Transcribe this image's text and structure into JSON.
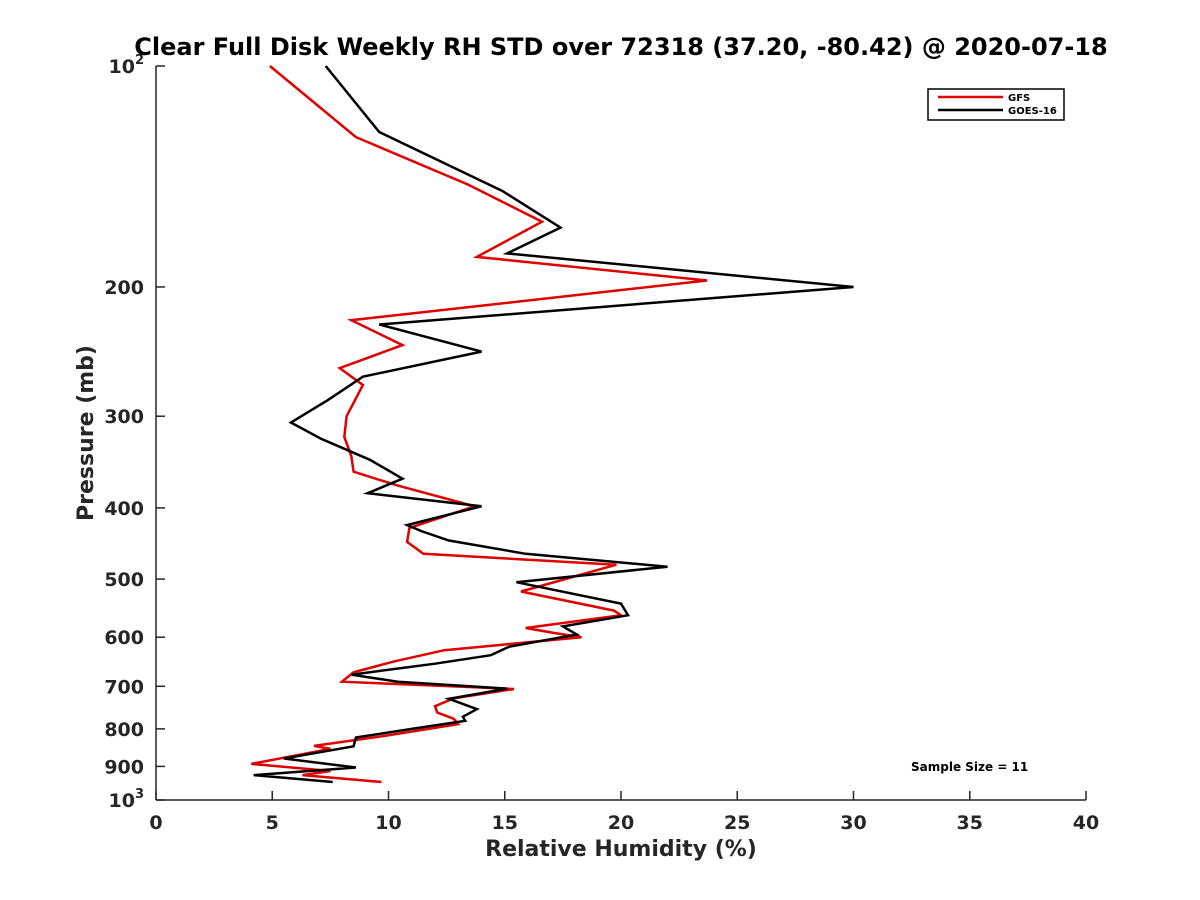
{
  "chart_data": {
    "type": "line",
    "title": "Clear Full Disk Weekly RH STD over 72318 (37.20, -80.42) @ 2020-07-18",
    "xlabel": "Relative Humidity (%)",
    "ylabel": "Pressure (mb)",
    "xlim": [
      0,
      40
    ],
    "ylim": [
      100,
      1000
    ],
    "y_scale": "log",
    "y_reversed": true,
    "grid": false,
    "legend_position": "top-right",
    "x_ticks": [
      "0",
      "5",
      "10",
      "15",
      "20",
      "25",
      "30",
      "35",
      "40"
    ],
    "y_ticks": [
      {
        "value": 100,
        "base": "10",
        "exp": "2"
      },
      {
        "value": 200,
        "label": "200"
      },
      {
        "value": 300,
        "label": "300"
      },
      {
        "value": 400,
        "label": "400"
      },
      {
        "value": 500,
        "label": "500"
      },
      {
        "value": 600,
        "label": "600"
      },
      {
        "value": 700,
        "label": "700"
      },
      {
        "value": 800,
        "label": "800"
      },
      {
        "value": 900,
        "label": "900"
      },
      {
        "value": 1000,
        "base": "10",
        "exp": "3"
      }
    ],
    "annotation": "Sample Size = 11",
    "series": [
      {
        "name": "GFS",
        "color": "#e00000",
        "points": [
          [
            4.9,
            100
          ],
          [
            8.6,
            125
          ],
          [
            13.4,
            145
          ],
          [
            16.6,
            163
          ],
          [
            13.8,
            182
          ],
          [
            23.7,
            196
          ],
          [
            8.4,
            222
          ],
          [
            10.6,
            240
          ],
          [
            7.9,
            258
          ],
          [
            8.9,
            272
          ],
          [
            8.2,
            300
          ],
          [
            8.1,
            320
          ],
          [
            8.4,
            340
          ],
          [
            8.5,
            357
          ],
          [
            10.4,
            373
          ],
          [
            13.7,
            398
          ],
          [
            10.9,
            426
          ],
          [
            10.8,
            445
          ],
          [
            11.5,
            462
          ],
          [
            19.8,
            478
          ],
          [
            15.7,
            520
          ],
          [
            19.7,
            552
          ],
          [
            20.0,
            560
          ],
          [
            15.9,
            583
          ],
          [
            17.1,
            592
          ],
          [
            18.3,
            600
          ],
          [
            12.4,
            625
          ],
          [
            10.2,
            648
          ],
          [
            8.5,
            670
          ],
          [
            8.0,
            690
          ],
          [
            11.8,
            698
          ],
          [
            15.4,
            706
          ],
          [
            12.8,
            727
          ],
          [
            12.0,
            745
          ],
          [
            12.1,
            760
          ],
          [
            12.8,
            775
          ],
          [
            13.0,
            788
          ],
          [
            9.8,
            818
          ],
          [
            6.8,
            844
          ],
          [
            7.5,
            852
          ],
          [
            4.1,
            893
          ],
          [
            7.5,
            913
          ],
          [
            6.3,
            925
          ],
          [
            9.7,
            945
          ]
        ]
      },
      {
        "name": "GOES-16",
        "color": "#000000",
        "points": [
          [
            7.3,
            100
          ],
          [
            9.6,
            123
          ],
          [
            14.9,
            148
          ],
          [
            17.4,
            166
          ],
          [
            15.1,
            180
          ],
          [
            30.0,
            200
          ],
          [
            9.6,
            225
          ],
          [
            14.0,
            245
          ],
          [
            8.9,
            265
          ],
          [
            7.4,
            285
          ],
          [
            5.8,
            306
          ],
          [
            7.1,
            322
          ],
          [
            9.2,
            344
          ],
          [
            10.6,
            365
          ],
          [
            9.1,
            382
          ],
          [
            14.0,
            398
          ],
          [
            10.8,
            422
          ],
          [
            11.4,
            430
          ],
          [
            12.6,
            443
          ],
          [
            15.9,
            462
          ],
          [
            22.0,
            481
          ],
          [
            15.5,
            505
          ],
          [
            20.0,
            540
          ],
          [
            20.3,
            560
          ],
          [
            17.5,
            580
          ],
          [
            18.1,
            595
          ],
          [
            15.2,
            618
          ],
          [
            14.4,
            635
          ],
          [
            12.0,
            652
          ],
          [
            8.4,
            675
          ],
          [
            10.4,
            690
          ],
          [
            15.1,
            705
          ],
          [
            12.6,
            728
          ],
          [
            13.8,
            752
          ],
          [
            13.2,
            770
          ],
          [
            13.3,
            780
          ],
          [
            11.0,
            800
          ],
          [
            8.6,
            822
          ],
          [
            8.5,
            845
          ],
          [
            5.5,
            878
          ],
          [
            8.6,
            903
          ],
          [
            4.2,
            925
          ],
          [
            7.6,
            945
          ]
        ]
      }
    ]
  }
}
